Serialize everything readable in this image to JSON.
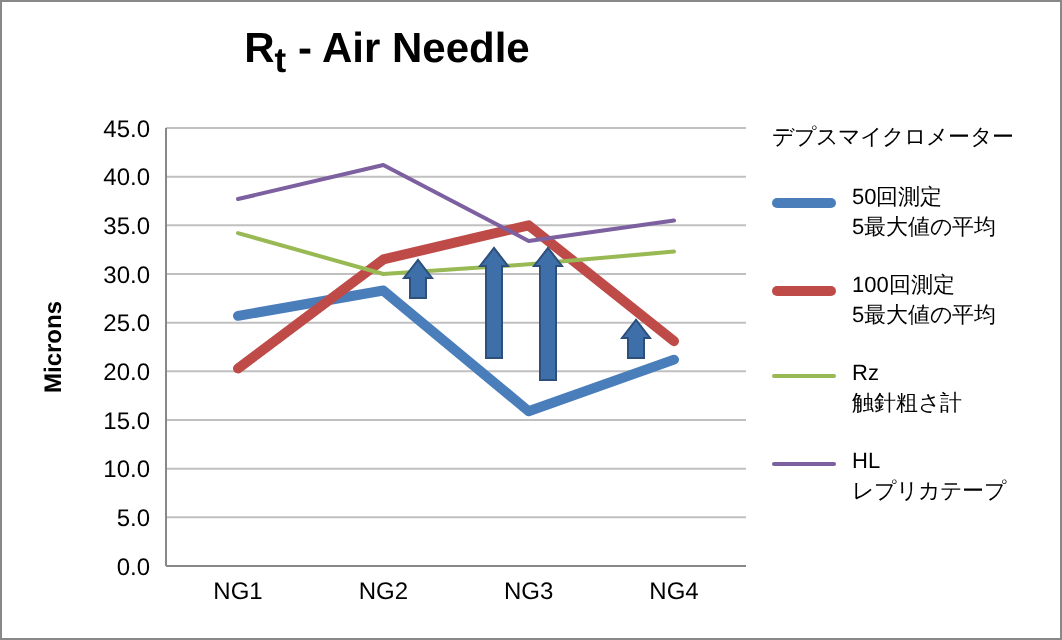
{
  "chart_data": {
    "type": "line",
    "title": "R$_{t}$ - Air Needle",
    "ylabel": "Microns",
    "legend_title": "デプスマイクロメーター",
    "categories": [
      "NG1",
      "NG2",
      "NG3",
      "NG4"
    ],
    "series": [
      {
        "name": "50回測定\n5最大値の平均",
        "color": "#4a7ebb",
        "values": [
          25.7,
          28.3,
          15.9,
          21.2
        ]
      },
      {
        "name": "100回測定\n5最大値の平均",
        "color": "#be4b48",
        "values": [
          20.3,
          31.5,
          35.0,
          23.1
        ]
      },
      {
        "name": "Rz\n触針粗さ計",
        "color": "#98b954",
        "values": [
          34.2,
          30.0,
          31.0,
          32.3
        ]
      },
      {
        "name": "HL\nレプリカテープ",
        "color": "#7d60a0",
        "values": [
          37.7,
          41.2,
          33.4,
          35.5
        ]
      }
    ],
    "ylim": [
      0,
      45
    ],
    "yticks": [
      {
        "value": 0,
        "label": "0.0"
      },
      {
        "value": 5,
        "label": "5.0"
      },
      {
        "value": 10,
        "label": "10.0"
      },
      {
        "value": 15,
        "label": "15.0"
      },
      {
        "value": 20,
        "label": "20.0"
      },
      {
        "value": 25,
        "label": "25.0"
      },
      {
        "value": 30,
        "label": "30.0"
      },
      {
        "value": 35,
        "label": "35.0"
      },
      {
        "value": 40,
        "label": "40.0"
      },
      {
        "value": 45,
        "label": "45.0"
      }
    ],
    "grid": "y",
    "legend": "right",
    "marker": "none",
    "line_style": "solid"
  }
}
